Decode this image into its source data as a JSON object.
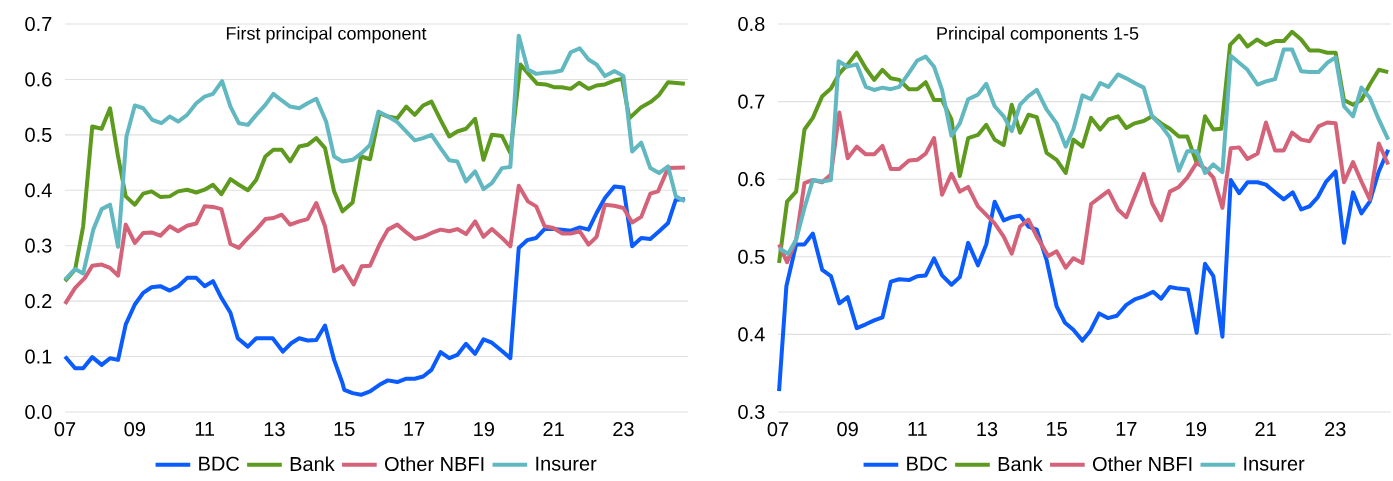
{
  "chart_data": [
    {
      "type": "line",
      "title": "First principal component",
      "xlim": [
        2007,
        2024.85
      ],
      "ylim": [
        0,
        0.7
      ],
      "xticks": [
        {
          "value": 2007,
          "label": "07"
        },
        {
          "value": 2009,
          "label": "09"
        },
        {
          "value": 2011,
          "label": "11"
        },
        {
          "value": 2013,
          "label": "13"
        },
        {
          "value": 2015,
          "label": "15"
        },
        {
          "value": 2017,
          "label": "17"
        },
        {
          "value": 2019,
          "label": "19"
        },
        {
          "value": 2021,
          "label": "21"
        },
        {
          "value": 2023,
          "label": "23"
        }
      ],
      "yticks": [
        {
          "value": 0,
          "label": "0.0"
        },
        0.1,
        0.2,
        0.3,
        0.4,
        0.5,
        0.6,
        0.7
      ],
      "grid": "y",
      "legend": "bottom",
      "marker": "none",
      "line_style": "solid",
      "series": [
        {
          "name": "BDC",
          "color": "#0a5cff",
          "x": [
            2007,
            2007.29,
            2007.52,
            2007.78,
            2008.05,
            2008.29,
            2008.52,
            2008.74,
            2009,
            2009.24,
            2009.48,
            2009.73,
            2010,
            2010.24,
            2010.5,
            2010.76,
            2011,
            2011.24,
            2011.48,
            2011.74,
            2011.95,
            2012.24,
            2012.48,
            2012.95,
            2013.24,
            2013.48,
            2013.71,
            2013.95,
            2014.2,
            2014.45,
            2014.71,
            2014.95,
            2015,
            2015.24,
            2015.48,
            2015.74,
            2016.01,
            2016.25,
            2016.52,
            2016.78,
            2017.02,
            2017.26,
            2017.5,
            2017.76,
            2018.01,
            2018.24,
            2018.49,
            2018.75,
            2018.99,
            2019.23,
            2019.52,
            2019.76,
            2020,
            2020.24,
            2020.5,
            2020.74,
            2020.99,
            2021.23,
            2021.49,
            2021.75,
            2022,
            2022.23,
            2022.47,
            2022.74,
            2023,
            2023.25,
            2023.51,
            2023.77,
            2024.04,
            2024.28,
            2024.5,
            2024.76
          ],
          "values": [
            0.1,
            0.079,
            0.079,
            0.099,
            0.085,
            0.097,
            0.094,
            0.158,
            0.194,
            0.215,
            0.225,
            0.227,
            0.219,
            0.227,
            0.242,
            0.242,
            0.227,
            0.236,
            0.206,
            0.179,
            0.133,
            0.118,
            0.133,
            0.133,
            0.109,
            0.124,
            0.133,
            0.129,
            0.13,
            0.156,
            0.094,
            0.052,
            0.04,
            0.034,
            0.031,
            0.037,
            0.049,
            0.057,
            0.054,
            0.06,
            0.06,
            0.064,
            0.076,
            0.108,
            0.097,
            0.103,
            0.123,
            0.105,
            0.131,
            0.125,
            0.11,
            0.097,
            0.296,
            0.31,
            0.314,
            0.33,
            0.33,
            0.329,
            0.327,
            0.333,
            0.329,
            0.359,
            0.386,
            0.407,
            0.405,
            0.299,
            0.314,
            0.312,
            0.327,
            0.341,
            0.383,
            0.384
          ]
        },
        {
          "name": "Bank",
          "color": "#5e9a1e",
          "x": [
            2007,
            2007.29,
            2007.52,
            2007.78,
            2008.05,
            2008.29,
            2008.52,
            2008.74,
            2009,
            2009.24,
            2009.48,
            2009.73,
            2010,
            2010.24,
            2010.5,
            2010.76,
            2011,
            2011.24,
            2011.48,
            2011.74,
            2011.98,
            2012.24,
            2012.48,
            2012.74,
            2012.97,
            2013.21,
            2013.45,
            2013.71,
            2013.95,
            2014.2,
            2014.45,
            2014.71,
            2014.95,
            2015.24,
            2015.48,
            2015.74,
            2016.01,
            2016.25,
            2016.52,
            2016.78,
            2017.02,
            2017.26,
            2017.5,
            2017.76,
            2018.01,
            2018.24,
            2018.49,
            2018.75,
            2018.99,
            2019.23,
            2019.52,
            2019.76,
            2020.05,
            2020.29,
            2020.53,
            2020.77,
            2021.01,
            2021.23,
            2021.49,
            2021.73,
            2022,
            2022.23,
            2022.47,
            2022.74,
            2022.96,
            2023.17,
            2023.51,
            2023.8,
            2024.02,
            2024.28,
            2024.76
          ],
          "values": [
            0.236,
            0.257,
            0.335,
            0.515,
            0.511,
            0.548,
            0.461,
            0.389,
            0.374,
            0.394,
            0.398,
            0.388,
            0.389,
            0.398,
            0.401,
            0.396,
            0.401,
            0.41,
            0.393,
            0.42,
            0.41,
            0.4,
            0.419,
            0.461,
            0.473,
            0.473,
            0.452,
            0.479,
            0.482,
            0.494,
            0.476,
            0.398,
            0.362,
            0.378,
            0.461,
            0.456,
            0.539,
            0.533,
            0.53,
            0.551,
            0.536,
            0.553,
            0.56,
            0.527,
            0.497,
            0.506,
            0.511,
            0.529,
            0.455,
            0.5,
            0.498,
            0.467,
            0.627,
            0.609,
            0.592,
            0.591,
            0.586,
            0.586,
            0.583,
            0.594,
            0.583,
            0.589,
            0.591,
            0.598,
            0.601,
            0.53,
            0.55,
            0.56,
            0.572,
            0.595,
            0.592
          ]
        },
        {
          "name": "Other NBFI",
          "color": "#d4637a",
          "x": [
            2007,
            2007.29,
            2007.57,
            2007.78,
            2008.05,
            2008.29,
            2008.52,
            2008.74,
            2009,
            2009.24,
            2009.48,
            2009.73,
            2010,
            2010.24,
            2010.5,
            2010.76,
            2011,
            2011.24,
            2011.48,
            2011.74,
            2011.98,
            2012.24,
            2012.48,
            2012.74,
            2012.97,
            2013.21,
            2013.45,
            2013.71,
            2013.95,
            2014.2,
            2014.45,
            2014.71,
            2014.95,
            2015.27,
            2015.5,
            2015.74,
            2016.01,
            2016.25,
            2016.52,
            2016.78,
            2017.02,
            2017.26,
            2017.5,
            2017.76,
            2018.01,
            2018.24,
            2018.49,
            2018.75,
            2018.99,
            2019.23,
            2019.52,
            2019.76,
            2020,
            2020.26,
            2020.5,
            2020.74,
            2020.99,
            2021.25,
            2021.49,
            2021.75,
            2022,
            2022.23,
            2022.47,
            2022.74,
            2023,
            2023.25,
            2023.51,
            2023.77,
            2023.99,
            2024.28,
            2024.76
          ],
          "values": [
            0.195,
            0.224,
            0.242,
            0.264,
            0.266,
            0.26,
            0.246,
            0.338,
            0.305,
            0.323,
            0.324,
            0.318,
            0.335,
            0.326,
            0.336,
            0.34,
            0.371,
            0.37,
            0.366,
            0.303,
            0.296,
            0.314,
            0.329,
            0.348,
            0.35,
            0.356,
            0.338,
            0.344,
            0.348,
            0.377,
            0.335,
            0.254,
            0.263,
            0.23,
            0.263,
            0.264,
            0.302,
            0.329,
            0.338,
            0.324,
            0.312,
            0.316,
            0.323,
            0.329,
            0.326,
            0.33,
            0.321,
            0.344,
            0.316,
            0.33,
            0.314,
            0.299,
            0.408,
            0.38,
            0.371,
            0.335,
            0.332,
            0.322,
            0.322,
            0.326,
            0.302,
            0.316,
            0.374,
            0.372,
            0.368,
            0.342,
            0.352,
            0.394,
            0.398,
            0.44,
            0.441
          ]
        },
        {
          "name": "Insurer",
          "color": "#62b8c0",
          "x": [
            2007,
            2007.29,
            2007.52,
            2007.81,
            2008.05,
            2008.29,
            2008.52,
            2008.76,
            2009,
            2009.24,
            2009.5,
            2009.76,
            2010,
            2010.24,
            2010.5,
            2010.76,
            2011,
            2011.24,
            2011.5,
            2011.74,
            2011.98,
            2012.24,
            2012.48,
            2012.74,
            2012.97,
            2013.21,
            2013.45,
            2013.71,
            2013.95,
            2014.2,
            2014.48,
            2014.71,
            2014.95,
            2015.24,
            2015.48,
            2015.74,
            2015.98,
            2016.25,
            2016.52,
            2016.78,
            2017.02,
            2017.26,
            2017.5,
            2017.76,
            2018.01,
            2018.24,
            2018.49,
            2018.75,
            2018.99,
            2019.23,
            2019.52,
            2019.76,
            2020,
            2020.26,
            2020.5,
            2020.74,
            2020.99,
            2021.23,
            2021.49,
            2021.75,
            2022,
            2022.23,
            2022.47,
            2022.74,
            2023,
            2023.25,
            2023.51,
            2023.77,
            2024.02,
            2024.28,
            2024.5,
            2024.76
          ],
          "values": [
            0.239,
            0.258,
            0.25,
            0.329,
            0.366,
            0.374,
            0.298,
            0.497,
            0.553,
            0.548,
            0.527,
            0.521,
            0.533,
            0.524,
            0.536,
            0.557,
            0.569,
            0.574,
            0.597,
            0.551,
            0.521,
            0.518,
            0.536,
            0.554,
            0.574,
            0.562,
            0.551,
            0.548,
            0.557,
            0.565,
            0.524,
            0.461,
            0.452,
            0.455,
            0.466,
            0.482,
            0.542,
            0.533,
            0.523,
            0.506,
            0.49,
            0.494,
            0.5,
            0.476,
            0.454,
            0.452,
            0.416,
            0.434,
            0.402,
            0.413,
            0.44,
            0.442,
            0.679,
            0.618,
            0.61,
            0.612,
            0.613,
            0.616,
            0.649,
            0.656,
            0.636,
            0.627,
            0.606,
            0.615,
            0.606,
            0.47,
            0.486,
            0.44,
            0.431,
            0.443,
            0.389,
            0.38
          ]
        }
      ]
    },
    {
      "type": "line",
      "title": "Principal components 1-5",
      "xlim": [
        2007,
        2024.6
      ],
      "ylim": [
        0.3,
        0.8
      ],
      "xticks": [
        {
          "value": 2007,
          "label": "07"
        },
        {
          "value": 2009,
          "label": "09"
        },
        {
          "value": 2011,
          "label": "11"
        },
        {
          "value": 2013,
          "label": "13"
        },
        {
          "value": 2015,
          "label": "15"
        },
        {
          "value": 2017,
          "label": "17"
        },
        {
          "value": 2019,
          "label": "19"
        },
        {
          "value": 2021,
          "label": "21"
        },
        {
          "value": 2023,
          "label": "23"
        }
      ],
      "yticks": [
        0.3,
        0.4,
        0.5,
        0.6,
        0.7,
        0.8
      ],
      "grid": "y",
      "legend": "bottom",
      "marker": "none",
      "line_style": "solid",
      "series": [
        {
          "name": "BDC",
          "color": "#0a5cff",
          "x": [
            2007.03,
            2007.24,
            2007.52,
            2007.76,
            2008,
            2008.27,
            2008.52,
            2008.76,
            2009,
            2009.26,
            2009.52,
            2009.76,
            2010,
            2010.24,
            2010.48,
            2010.76,
            2011,
            2011.24,
            2011.48,
            2011.71,
            2011.98,
            2012.22,
            2012.46,
            2012.74,
            2012.98,
            2013.22,
            2013.48,
            2013.71,
            2013.95,
            2014.19,
            2014.43,
            2014.71,
            2015,
            2015.24,
            2015.48,
            2015.74,
            2015.96,
            2016.22,
            2016.47,
            2016.73,
            2017,
            2017.24,
            2017.5,
            2017.77,
            2018,
            2018.25,
            2018.51,
            2018.77,
            2019.02,
            2019.26,
            2019.5,
            2019.76,
            2020,
            2020.24,
            2020.48,
            2020.77,
            2021.01,
            2021.27,
            2021.52,
            2021.78,
            2022.02,
            2022.26,
            2022.5,
            2022.74,
            2023.01,
            2023.25,
            2023.51,
            2023.75,
            2023.99,
            2024.25,
            2024.52
          ],
          "values": [
            0.327,
            0.462,
            0.516,
            0.516,
            0.53,
            0.483,
            0.475,
            0.44,
            0.448,
            0.408,
            0.413,
            0.418,
            0.422,
            0.468,
            0.471,
            0.47,
            0.475,
            0.476,
            0.498,
            0.476,
            0.464,
            0.474,
            0.518,
            0.489,
            0.516,
            0.571,
            0.547,
            0.551,
            0.553,
            0.539,
            0.535,
            0.496,
            0.436,
            0.415,
            0.406,
            0.392,
            0.404,
            0.427,
            0.421,
            0.424,
            0.438,
            0.445,
            0.449,
            0.455,
            0.446,
            0.461,
            0.459,
            0.458,
            0.402,
            0.491,
            0.475,
            0.397,
            0.599,
            0.582,
            0.596,
            0.596,
            0.593,
            0.583,
            0.574,
            0.583,
            0.561,
            0.565,
            0.577,
            0.597,
            0.61,
            0.518,
            0.583,
            0.556,
            0.571,
            0.61,
            0.638
          ]
        },
        {
          "name": "Bank",
          "color": "#5e9a1e",
          "x": [
            2007.03,
            2007.26,
            2007.52,
            2007.76,
            2008,
            2008.27,
            2008.52,
            2008.76,
            2009,
            2009.26,
            2009.52,
            2009.76,
            2010,
            2010.24,
            2010.48,
            2010.76,
            2011,
            2011.24,
            2011.48,
            2011.71,
            2011.98,
            2012.22,
            2012.46,
            2012.74,
            2012.98,
            2013.22,
            2013.48,
            2013.71,
            2013.95,
            2014.19,
            2014.43,
            2014.71,
            2015,
            2015.26,
            2015.48,
            2015.74,
            2015.99,
            2016.25,
            2016.49,
            2016.76,
            2017,
            2017.24,
            2017.5,
            2017.74,
            2018,
            2018.25,
            2018.51,
            2018.75,
            2019.02,
            2019.26,
            2019.5,
            2019.73,
            2019.98,
            2020.24,
            2020.48,
            2020.75,
            2021.01,
            2021.27,
            2021.52,
            2021.76,
            2022.02,
            2022.26,
            2022.52,
            2022.77,
            2023.01,
            2023.25,
            2023.51,
            2023.75,
            2023.99,
            2024.25,
            2024.52
          ],
          "values": [
            0.492,
            0.571,
            0.584,
            0.664,
            0.679,
            0.707,
            0.717,
            0.736,
            0.748,
            0.763,
            0.743,
            0.728,
            0.741,
            0.73,
            0.728,
            0.716,
            0.716,
            0.725,
            0.702,
            0.702,
            0.677,
            0.604,
            0.653,
            0.657,
            0.67,
            0.651,
            0.644,
            0.696,
            0.66,
            0.683,
            0.68,
            0.634,
            0.625,
            0.608,
            0.651,
            0.642,
            0.679,
            0.664,
            0.677,
            0.681,
            0.666,
            0.672,
            0.675,
            0.681,
            0.672,
            0.665,
            0.655,
            0.655,
            0.621,
            0.681,
            0.664,
            0.665,
            0.773,
            0.785,
            0.771,
            0.78,
            0.773,
            0.778,
            0.778,
            0.79,
            0.78,
            0.766,
            0.766,
            0.763,
            0.763,
            0.702,
            0.696,
            0.702,
            0.722,
            0.741,
            0.738
          ]
        },
        {
          "name": "Other NBFI",
          "color": "#d4637a",
          "x": [
            2007.03,
            2007.26,
            2007.52,
            2007.76,
            2008,
            2008.27,
            2008.52,
            2008.76,
            2009,
            2009.26,
            2009.52,
            2009.76,
            2010,
            2010.24,
            2010.48,
            2010.76,
            2011,
            2011.24,
            2011.48,
            2011.71,
            2011.98,
            2012.22,
            2012.46,
            2012.74,
            2012.98,
            2013.22,
            2013.48,
            2013.71,
            2013.95,
            2014.19,
            2014.43,
            2014.76,
            2015,
            2015.26,
            2015.48,
            2015.74,
            2015.99,
            2016.25,
            2016.49,
            2016.76,
            2017,
            2017.24,
            2017.5,
            2017.74,
            2018,
            2018.25,
            2018.51,
            2018.75,
            2019.02,
            2019.26,
            2019.5,
            2019.76,
            2020,
            2020.24,
            2020.48,
            2020.77,
            2021.01,
            2021.27,
            2021.52,
            2021.76,
            2022.02,
            2022.26,
            2022.52,
            2022.77,
            2023.01,
            2023.25,
            2023.51,
            2023.75,
            2023.99,
            2024.25,
            2024.52
          ],
          "values": [
            0.516,
            0.493,
            0.522,
            0.595,
            0.599,
            0.596,
            0.606,
            0.686,
            0.627,
            0.642,
            0.632,
            0.632,
            0.643,
            0.613,
            0.613,
            0.624,
            0.625,
            0.633,
            0.653,
            0.58,
            0.607,
            0.584,
            0.59,
            0.565,
            0.554,
            0.543,
            0.526,
            0.504,
            0.539,
            0.548,
            0.526,
            0.501,
            0.507,
            0.486,
            0.498,
            0.492,
            0.568,
            0.577,
            0.585,
            0.561,
            0.551,
            0.578,
            0.607,
            0.569,
            0.547,
            0.584,
            0.59,
            0.602,
            0.621,
            0.614,
            0.602,
            0.563,
            0.64,
            0.641,
            0.626,
            0.633,
            0.673,
            0.637,
            0.637,
            0.66,
            0.651,
            0.649,
            0.668,
            0.673,
            0.672,
            0.596,
            0.622,
            0.597,
            0.574,
            0.646,
            0.619
          ]
        },
        {
          "name": "Insurer",
          "color": "#62b8c0",
          "x": [
            2007.03,
            2007.29,
            2007.52,
            2007.76,
            2008,
            2008.27,
            2008.52,
            2008.74,
            2009,
            2009.26,
            2009.52,
            2009.76,
            2010,
            2010.24,
            2010.48,
            2010.76,
            2011,
            2011.24,
            2011.48,
            2011.71,
            2011.98,
            2012.22,
            2012.46,
            2012.74,
            2012.98,
            2013.22,
            2013.48,
            2013.71,
            2013.95,
            2014.19,
            2014.43,
            2014.71,
            2015,
            2015.26,
            2015.48,
            2015.74,
            2015.99,
            2016.25,
            2016.49,
            2016.76,
            2017,
            2017.24,
            2017.5,
            2017.74,
            2018,
            2018.25,
            2018.51,
            2018.75,
            2019.02,
            2019.26,
            2019.5,
            2019.76,
            2020,
            2020.24,
            2020.48,
            2020.77,
            2021.01,
            2021.27,
            2021.52,
            2021.76,
            2022.02,
            2022.26,
            2022.52,
            2022.77,
            2023.01,
            2023.25,
            2023.51,
            2023.75,
            2023.99,
            2024.25,
            2024.52
          ],
          "values": [
            0.511,
            0.504,
            0.522,
            0.563,
            0.599,
            0.597,
            0.599,
            0.752,
            0.745,
            0.748,
            0.719,
            0.715,
            0.718,
            0.716,
            0.719,
            0.737,
            0.753,
            0.758,
            0.745,
            0.715,
            0.656,
            0.672,
            0.703,
            0.709,
            0.723,
            0.694,
            0.681,
            0.662,
            0.696,
            0.707,
            0.715,
            0.69,
            0.672,
            0.642,
            0.664,
            0.708,
            0.703,
            0.724,
            0.719,
            0.735,
            0.73,
            0.724,
            0.718,
            0.681,
            0.669,
            0.654,
            0.611,
            0.636,
            0.636,
            0.608,
            0.619,
            0.609,
            0.759,
            0.75,
            0.741,
            0.722,
            0.726,
            0.729,
            0.767,
            0.767,
            0.739,
            0.738,
            0.738,
            0.75,
            0.757,
            0.694,
            0.681,
            0.718,
            0.705,
            0.677,
            0.651
          ]
        }
      ]
    }
  ]
}
